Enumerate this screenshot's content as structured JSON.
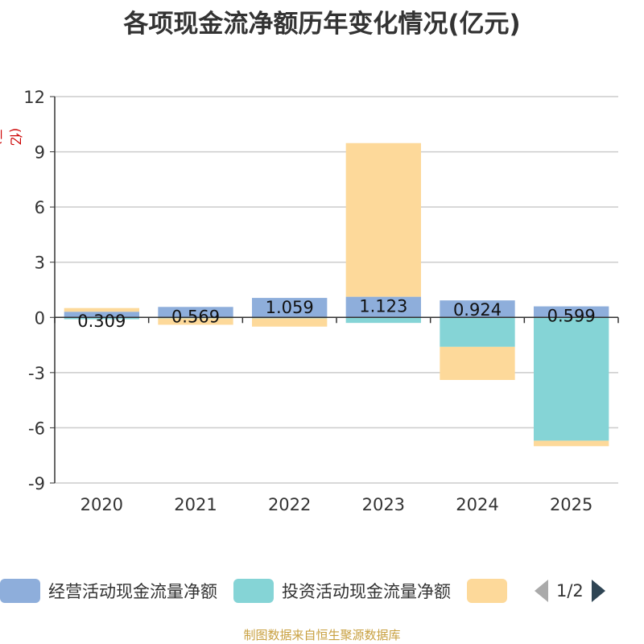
{
  "chart_data": {
    "type": "bar",
    "stacked": true,
    "title": "各项现金流净额历年变化情况(亿元)",
    "ylabel": "(亿元)",
    "xlabel": "",
    "categories": [
      "2020",
      "2021",
      "2022",
      "2023",
      "2024",
      "2025"
    ],
    "ylim": [
      -9,
      12
    ],
    "yticks": [
      12,
      9,
      6,
      3,
      0,
      -3,
      -6,
      -9
    ],
    "series": [
      {
        "name": "经营活动现金流量净额",
        "color": "#8eaedb",
        "values": [
          0.309,
          0.569,
          1.059,
          1.123,
          0.924,
          0.599
        ]
      },
      {
        "name": "投资活动现金流量净额",
        "color": "#85d4d6",
        "values": [
          -0.1,
          -0.05,
          -0.05,
          -0.3,
          -1.6,
          -6.7
        ]
      },
      {
        "name": "",
        "color": "#fdd99a",
        "values": [
          0.2,
          -0.35,
          -0.45,
          8.35,
          -1.8,
          -0.3
        ]
      }
    ],
    "data_labels": [
      "0.309",
      "0.569",
      "1.059",
      "1.123",
      "0.924",
      "0.599"
    ]
  },
  "legend": {
    "items": [
      {
        "label": "经营活动现金流量净额",
        "color": "#8eaedb"
      },
      {
        "label": "投资活动现金流量净额",
        "color": "#85d4d6"
      },
      {
        "label": "",
        "color": "#fdd99a"
      }
    ],
    "page": "1/2"
  },
  "source": "制图数据来自恒生聚源数据库"
}
